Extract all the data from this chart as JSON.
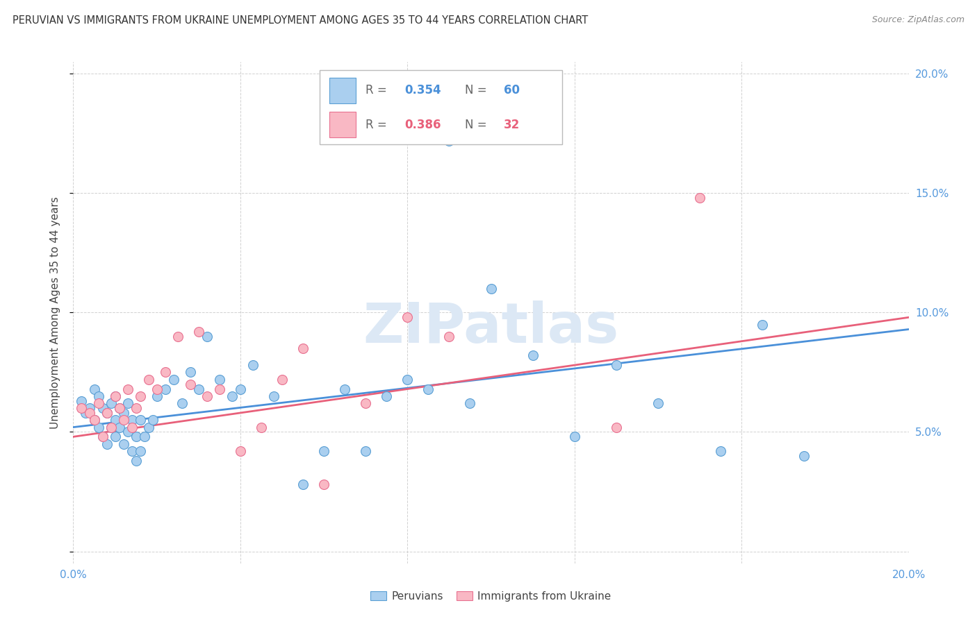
{
  "title": "PERUVIAN VS IMMIGRANTS FROM UKRAINE UNEMPLOYMENT AMONG AGES 35 TO 44 YEARS CORRELATION CHART",
  "source": "Source: ZipAtlas.com",
  "ylabel": "Unemployment Among Ages 35 to 44 years",
  "xlim": [
    0.0,
    0.2
  ],
  "ylim": [
    -0.005,
    0.205
  ],
  "xticks": [
    0.0,
    0.04,
    0.08,
    0.12,
    0.16,
    0.2
  ],
  "yticks": [
    0.0,
    0.05,
    0.1,
    0.15,
    0.2
  ],
  "legend_blue_r": "0.354",
  "legend_blue_n": "60",
  "legend_pink_r": "0.386",
  "legend_pink_n": "32",
  "legend_label_blue": "Peruvians",
  "legend_label_pink": "Immigrants from Ukraine",
  "blue_color": "#aacfef",
  "pink_color": "#f9b8c4",
  "blue_edge_color": "#5a9fd4",
  "pink_edge_color": "#e87090",
  "blue_line_color": "#4a90d9",
  "pink_line_color": "#e8607a",
  "watermark_color": "#dce8f5",
  "blue_scatter_x": [
    0.002,
    0.003,
    0.004,
    0.005,
    0.005,
    0.006,
    0.006,
    0.007,
    0.007,
    0.008,
    0.008,
    0.009,
    0.009,
    0.01,
    0.01,
    0.01,
    0.011,
    0.011,
    0.012,
    0.012,
    0.013,
    0.013,
    0.014,
    0.014,
    0.015,
    0.015,
    0.016,
    0.016,
    0.017,
    0.018,
    0.019,
    0.02,
    0.022,
    0.024,
    0.026,
    0.028,
    0.03,
    0.032,
    0.035,
    0.038,
    0.04,
    0.043,
    0.048,
    0.055,
    0.06,
    0.065,
    0.07,
    0.075,
    0.08,
    0.085,
    0.09,
    0.095,
    0.1,
    0.11,
    0.12,
    0.13,
    0.14,
    0.155,
    0.165,
    0.175
  ],
  "blue_scatter_y": [
    0.063,
    0.058,
    0.06,
    0.055,
    0.068,
    0.052,
    0.065,
    0.048,
    0.06,
    0.045,
    0.058,
    0.052,
    0.062,
    0.048,
    0.055,
    0.065,
    0.052,
    0.06,
    0.045,
    0.058,
    0.05,
    0.062,
    0.042,
    0.055,
    0.038,
    0.048,
    0.042,
    0.055,
    0.048,
    0.052,
    0.055,
    0.065,
    0.068,
    0.072,
    0.062,
    0.075,
    0.068,
    0.09,
    0.072,
    0.065,
    0.068,
    0.078,
    0.065,
    0.028,
    0.042,
    0.068,
    0.042,
    0.065,
    0.072,
    0.068,
    0.172,
    0.062,
    0.11,
    0.082,
    0.048,
    0.078,
    0.062,
    0.042,
    0.095,
    0.04
  ],
  "pink_scatter_x": [
    0.002,
    0.004,
    0.005,
    0.006,
    0.007,
    0.008,
    0.009,
    0.01,
    0.011,
    0.012,
    0.013,
    0.014,
    0.015,
    0.016,
    0.018,
    0.02,
    0.022,
    0.025,
    0.028,
    0.03,
    0.032,
    0.035,
    0.04,
    0.045,
    0.05,
    0.055,
    0.06,
    0.07,
    0.08,
    0.09,
    0.13,
    0.15
  ],
  "pink_scatter_y": [
    0.06,
    0.058,
    0.055,
    0.062,
    0.048,
    0.058,
    0.052,
    0.065,
    0.06,
    0.055,
    0.068,
    0.052,
    0.06,
    0.065,
    0.072,
    0.068,
    0.075,
    0.09,
    0.07,
    0.092,
    0.065,
    0.068,
    0.042,
    0.052,
    0.072,
    0.085,
    0.028,
    0.062,
    0.098,
    0.09,
    0.052,
    0.148
  ],
  "blue_line_x": [
    0.0,
    0.2
  ],
  "blue_line_y": [
    0.052,
    0.093
  ],
  "pink_line_x": [
    0.0,
    0.2
  ],
  "pink_line_y": [
    0.048,
    0.098
  ]
}
